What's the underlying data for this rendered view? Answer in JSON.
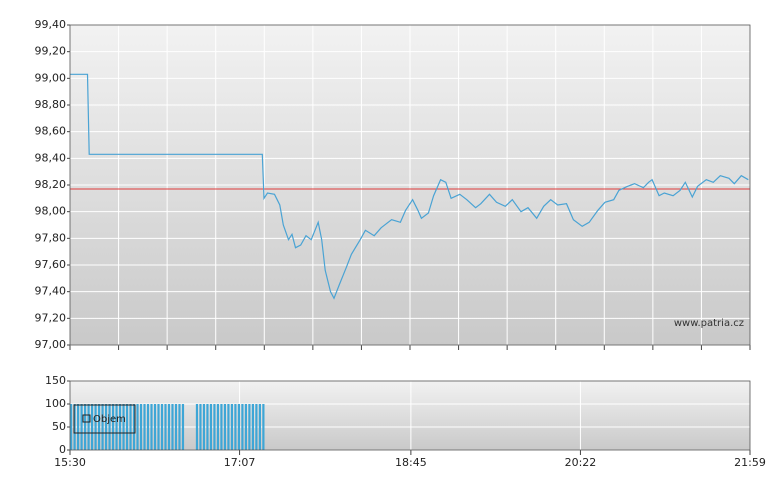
{
  "chart_data": [
    {
      "type": "line",
      "color": "#4aa3d4",
      "xlim": [
        "15:30",
        "21:59"
      ],
      "ylim": [
        97.0,
        99.4
      ],
      "yticks": [
        {
          "value": 97.0,
          "label": "97,00"
        },
        {
          "value": 97.2,
          "label": "97,20"
        },
        {
          "value": 97.4,
          "label": "97,40"
        },
        {
          "value": 97.6,
          "label": "97,60"
        },
        {
          "value": 97.8,
          "label": "97,80"
        },
        {
          "value": 98.0,
          "label": "98,00"
        },
        {
          "value": 98.2,
          "label": "98,20"
        },
        {
          "value": 98.4,
          "label": "98,40"
        },
        {
          "value": 98.6,
          "label": "98,60"
        },
        {
          "value": 98.8,
          "label": "98,80"
        },
        {
          "value": 99.0,
          "label": "99,00"
        },
        {
          "value": 99.2,
          "label": "99,20"
        },
        {
          "value": 99.4,
          "label": "99,40"
        }
      ],
      "grid": true,
      "reference_line": {
        "value": 98.17,
        "color": "#e03a3a"
      },
      "watermark": "www.patria.cz",
      "x": [
        "15:30",
        "15:40",
        "15:41",
        "17:20",
        "17:21",
        "17:23",
        "17:27",
        "17:30",
        "17:32",
        "17:35",
        "17:37",
        "17:39",
        "17:42",
        "17:45",
        "17:48",
        "17:52",
        "17:54",
        "17:56",
        "17:59",
        "18:01",
        "18:04",
        "18:08",
        "18:11",
        "18:16",
        "18:19",
        "18:24",
        "18:28",
        "18:34",
        "18:39",
        "18:42",
        "18:46",
        "18:49",
        "18:51",
        "18:55",
        "18:58",
        "19:02",
        "19:05",
        "19:08",
        "19:13",
        "19:17",
        "19:22",
        "19:25",
        "19:30",
        "19:34",
        "19:39",
        "19:43",
        "19:48",
        "19:52",
        "19:57",
        "20:01",
        "20:05",
        "20:09",
        "20:14",
        "20:18",
        "20:23",
        "20:27",
        "20:32",
        "20:36",
        "20:41",
        "20:44",
        "20:49",
        "20:53",
        "20:58",
        "21:01",
        "21:03",
        "21:07",
        "21:10",
        "21:15",
        "21:19",
        "21:22",
        "21:26",
        "21:29",
        "21:34",
        "21:38",
        "21:42",
        "21:47",
        "21:50",
        "21:54",
        "21:58"
      ],
      "values": [
        99.03,
        99.03,
        98.43,
        98.43,
        98.1,
        98.14,
        98.13,
        98.05,
        97.9,
        97.79,
        97.83,
        97.73,
        97.75,
        97.82,
        97.79,
        97.92,
        97.79,
        97.56,
        97.4,
        97.35,
        97.45,
        97.58,
        97.68,
        97.79,
        97.86,
        97.82,
        97.88,
        97.94,
        97.92,
        98.01,
        98.09,
        98.01,
        97.95,
        97.99,
        98.12,
        98.24,
        98.22,
        98.1,
        98.13,
        98.09,
        98.03,
        98.06,
        98.13,
        98.07,
        98.04,
        98.09,
        98.0,
        98.03,
        97.95,
        98.04,
        98.09,
        98.05,
        98.06,
        97.94,
        97.89,
        97.92,
        98.01,
        98.07,
        98.09,
        98.16,
        98.19,
        98.21,
        98.18,
        98.22,
        98.24,
        98.12,
        98.14,
        98.12,
        98.16,
        98.22,
        98.11,
        98.19,
        98.24,
        98.22,
        98.27,
        98.25,
        98.21,
        98.27,
        98.24
      ]
    },
    {
      "type": "bar",
      "xlim": [
        "15:30",
        "21:59"
      ],
      "xticks": [
        "15:30",
        "17:07",
        "18:45",
        "20:22",
        "21:59"
      ],
      "ylim": [
        0,
        150
      ],
      "yticks": [
        0,
        50,
        100,
        150
      ],
      "grid": true,
      "x": [
        "15:30",
        "15:32",
        "15:34",
        "15:36",
        "15:38",
        "15:40",
        "15:42",
        "15:44",
        "15:46",
        "15:48",
        "15:50",
        "15:52",
        "15:54",
        "15:56",
        "15:58",
        "16:00",
        "16:02",
        "16:04",
        "16:06",
        "16:08",
        "16:10",
        "16:12",
        "16:14",
        "16:16",
        "16:18",
        "16:20",
        "16:22",
        "16:24",
        "16:26",
        "16:28",
        "16:30",
        "16:32",
        "16:34",
        "16:42",
        "16:44",
        "16:46",
        "16:48",
        "16:50",
        "16:52",
        "16:54",
        "16:56",
        "16:58",
        "17:00",
        "17:02",
        "17:04",
        "17:06",
        "17:08",
        "17:10",
        "17:12",
        "17:14",
        "17:16",
        "17:18",
        "17:20"
      ],
      "series": [
        {
          "name": "Objem",
          "color": "#3ea6d6",
          "values": [
            100,
            100,
            100,
            100,
            100,
            100,
            100,
            100,
            100,
            100,
            100,
            100,
            100,
            100,
            100,
            100,
            100,
            100,
            100,
            100,
            100,
            100,
            100,
            100,
            100,
            100,
            100,
            100,
            100,
            100,
            100,
            100,
            100,
            100,
            100,
            100,
            100,
            100,
            100,
            100,
            100,
            100,
            100,
            100,
            100,
            100,
            100,
            100,
            100,
            100,
            100,
            100,
            100
          ]
        }
      ]
    }
  ]
}
